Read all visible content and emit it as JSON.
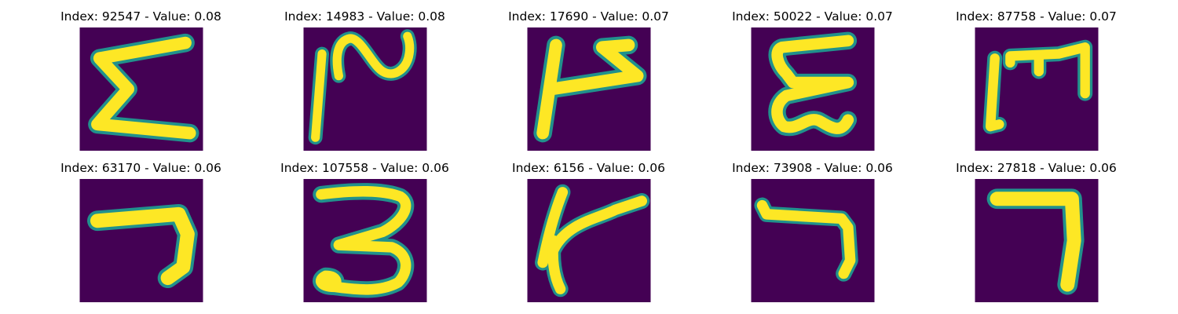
{
  "figure": {
    "colors": {
      "background": "#440154",
      "mid": "#21918c",
      "edge": "#5ec962",
      "stroke": "#fde725"
    },
    "panels": [
      {
        "title": "Index: 92547 - Value: 0.08",
        "glyph": "sigma-like-character"
      },
      {
        "title": "Index: 14983 - Value: 0.08",
        "glyph": "vertical-line-and-loop-character"
      },
      {
        "title": "Index: 17690 - Value: 0.07",
        "glyph": "t-with-arrow-character"
      },
      {
        "title": "Index: 50022 - Value: 0.07",
        "glyph": "epsilon-like-character"
      },
      {
        "title": "Index: 87758 - Value: 0.07",
        "glyph": "rotated-e-character"
      },
      {
        "title": "Index: 63170 - Value: 0.06",
        "glyph": "seven-like-character"
      },
      {
        "title": "Index: 107558 - Value: 0.06",
        "glyph": "three-character"
      },
      {
        "title": "Index: 6156 - Value: 0.06",
        "glyph": "k-like-character"
      },
      {
        "title": "Index: 73908 - Value: 0.06",
        "glyph": "seven-like-character"
      },
      {
        "title": "Index: 27818 - Value: 0.06",
        "glyph": "seven-character"
      }
    ]
  }
}
